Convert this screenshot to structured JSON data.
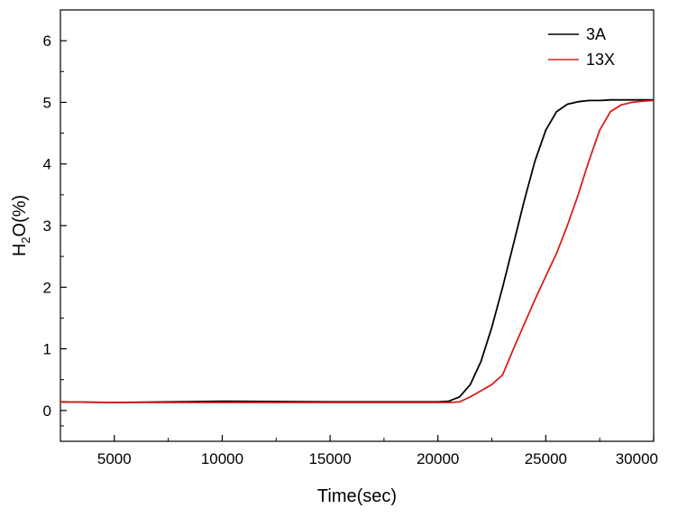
{
  "chart_data": {
    "type": "line",
    "title": "",
    "xlabel": "Time(sec)",
    "ylabel": "H2O(%)",
    "ylabel_parts": {
      "main1": "H",
      "sub": "2",
      "main2": "O(%)"
    },
    "xlim": [
      2500,
      30000
    ],
    "ylim": [
      -0.5,
      6.5
    ],
    "x_ticks": [
      5000,
      10000,
      15000,
      20000,
      25000,
      30000
    ],
    "x_tick_labels": [
      "5000",
      "10000",
      "15000",
      "20000",
      "25000",
      "30000"
    ],
    "y_ticks": [
      0,
      1,
      2,
      3,
      4,
      5,
      6
    ],
    "y_tick_labels": [
      "0",
      "1",
      "2",
      "3",
      "4",
      "5",
      "6"
    ],
    "grid": false,
    "legend_position": "top-right",
    "series": [
      {
        "name": "3A",
        "color": "#000000",
        "x": [
          2500,
          5000,
          10000,
          15000,
          20000,
          20500,
          21000,
          21500,
          22000,
          22500,
          23000,
          23500,
          24000,
          24500,
          25000,
          25500,
          26000,
          26500,
          27000,
          27500,
          28000,
          29000,
          30000
        ],
        "y": [
          0.14,
          0.13,
          0.15,
          0.14,
          0.14,
          0.15,
          0.22,
          0.42,
          0.8,
          1.35,
          2.0,
          2.7,
          3.4,
          4.05,
          4.55,
          4.85,
          4.97,
          5.01,
          5.03,
          5.03,
          5.04,
          5.04,
          5.04
        ]
      },
      {
        "name": "13X",
        "color": "#d91e1e",
        "x": [
          2500,
          5000,
          10000,
          15000,
          20000,
          20500,
          21000,
          21500,
          22000,
          22500,
          23000,
          23500,
          24000,
          24500,
          25000,
          25500,
          26000,
          26500,
          27000,
          27500,
          28000,
          28500,
          29000,
          29500,
          30000
        ],
        "y": [
          0.14,
          0.13,
          0.13,
          0.13,
          0.13,
          0.13,
          0.14,
          0.22,
          0.32,
          0.42,
          0.58,
          1.0,
          1.4,
          1.8,
          2.18,
          2.55,
          3.0,
          3.5,
          4.05,
          4.55,
          4.85,
          4.96,
          5.0,
          5.02,
          5.03
        ]
      }
    ]
  }
}
